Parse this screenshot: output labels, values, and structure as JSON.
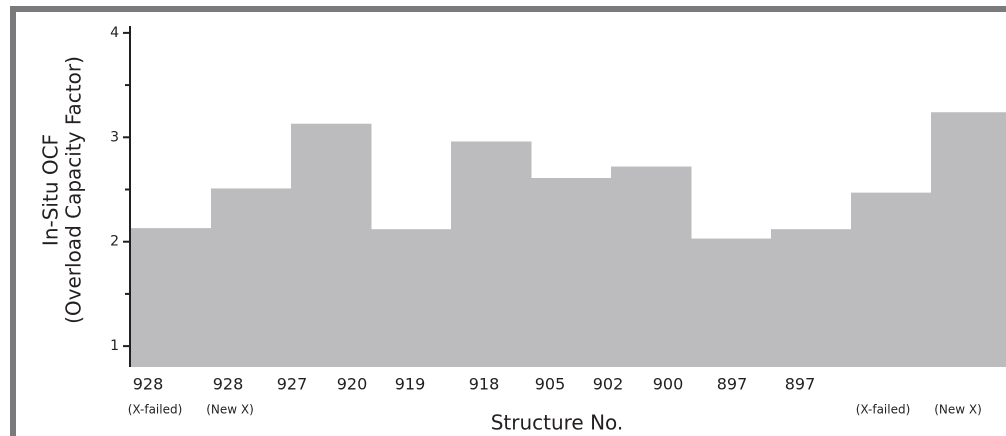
{
  "chart_data": {
    "type": "bar",
    "y_label_lines": [
      "In-Situ OCF",
      "(Overload Capacity Factor)"
    ],
    "x_label": "Structure No.",
    "categories": [
      "928",
      "928",
      "927",
      "920",
      "919",
      "918",
      "905",
      "902",
      "900",
      "897",
      "897"
    ],
    "sublabels": [
      "(X-failed)",
      "(New X)",
      null,
      null,
      null,
      null,
      null,
      null,
      null,
      "(X-failed)",
      "(New X)"
    ],
    "values": [
      2.13,
      2.51,
      3.13,
      2.12,
      2.96,
      2.61,
      2.72,
      2.03,
      2.12,
      2.47,
      3.24
    ],
    "color": "#bcbcbe",
    "ylim": [
      0.8,
      4.2
    ],
    "yticks": [
      1,
      2,
      3,
      4
    ],
    "yminorticks": [
      1.5,
      2.5,
      3.5
    ]
  }
}
